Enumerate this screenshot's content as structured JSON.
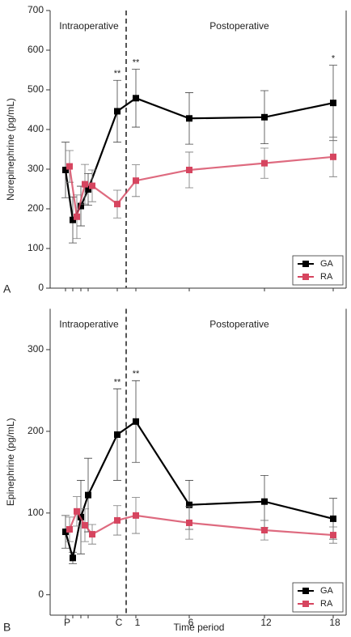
{
  "chart_data": [
    {
      "type": "line",
      "panel_label": "A",
      "y_label": "Norepinephrine (pg/mL)",
      "regions": [
        "Intraoperative",
        "Postoperative"
      ],
      "categories": [
        null,
        null,
        null,
        null,
        null,
        null,
        null,
        null,
        null
      ],
      "series": [
        {
          "name": "GA",
          "color": "#000000",
          "values": [
            298,
            172,
            207,
            249,
            446,
            479,
            428,
            431,
            467
          ],
          "errors": [
            70,
            58,
            50,
            40,
            78,
            73,
            65,
            67,
            95
          ]
        },
        {
          "name": "RA",
          "color": "#d6455f",
          "values": [
            307,
            180,
            262,
            258,
            212,
            271,
            298,
            315,
            331
          ],
          "errors": [
            40,
            55,
            50,
            40,
            35,
            40,
            45,
            38,
            50
          ]
        }
      ],
      "annotations": [
        {
          "text": "**",
          "x_index": 4
        },
        {
          "text": "**",
          "x_index": 5
        },
        {
          "text": "*",
          "x_index": 8
        }
      ],
      "ylim": [
        0,
        700
      ],
      "yticks": [
        0,
        100,
        200,
        300,
        400,
        500,
        600,
        700
      ],
      "legend": "lower right"
    },
    {
      "type": "line",
      "panel_label": "B",
      "y_label": "Epinephrine (pg/mL)",
      "x_label": "Time period",
      "regions": [
        "Intraoperative",
        "Postoperative"
      ],
      "categories": [
        "P",
        null,
        null,
        null,
        "C",
        "1",
        "6",
        "12",
        "18"
      ],
      "series": [
        {
          "name": "GA",
          "color": "#000000",
          "values": [
            77,
            45,
            95,
            122,
            196,
            212,
            110,
            114,
            93
          ],
          "errors": [
            20,
            7,
            45,
            45,
            56,
            50,
            30,
            32,
            25
          ]
        },
        {
          "name": "RA",
          "color": "#d6455f",
          "values": [
            80,
            102,
            85,
            74,
            91,
            97,
            88,
            79,
            73
          ],
          "errors": [
            15,
            18,
            20,
            12,
            18,
            22,
            20,
            12,
            10
          ]
        }
      ],
      "annotations": [
        {
          "text": "**",
          "x_index": 4
        },
        {
          "text": "**",
          "x_index": 5
        }
      ],
      "ylim": [
        -25,
        350
      ],
      "yticks": [
        0,
        100,
        200,
        300
      ],
      "legend": "lower right"
    }
  ]
}
